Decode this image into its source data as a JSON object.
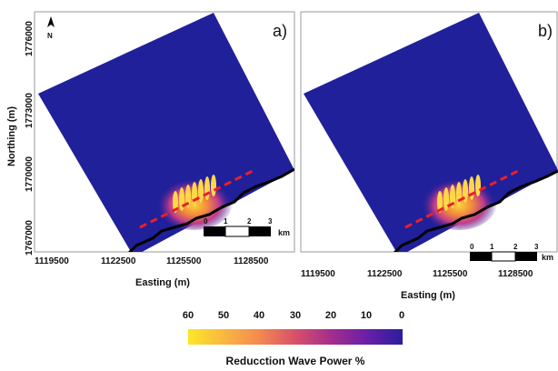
{
  "panels": [
    {
      "label": "a)",
      "x_ticks": [
        "1119500",
        "1122500",
        "1125500",
        "1128500"
      ],
      "y_ticks": [
        "1767000",
        "1770000",
        "1773000",
        "1776000"
      ]
    },
    {
      "label": "b)",
      "x_ticks": [
        "1119500",
        "1122500",
        "1125500",
        "1128500"
      ],
      "y_ticks": []
    }
  ],
  "axes": {
    "xlabel": "Easting (m)",
    "ylabel": "Northing (m)"
  },
  "north_arrow": {
    "letter": "N"
  },
  "scale_bar": {
    "ticks": [
      "0",
      "1",
      "2",
      "3"
    ],
    "unit": "km"
  },
  "colorbar": {
    "title": "Reducction Wave Power %",
    "ticks": [
      "60",
      "50",
      "40",
      "30",
      "20",
      "10",
      "0"
    ],
    "colors": [
      "#fde725",
      "#f9b641",
      "#f48a50",
      "#d8506a",
      "#a32d8c",
      "#6a1fa6",
      "#2a1e9e"
    ]
  },
  "colors": {
    "sea": "#20209a",
    "coast": "#000000",
    "transect": "#e8202a"
  }
}
